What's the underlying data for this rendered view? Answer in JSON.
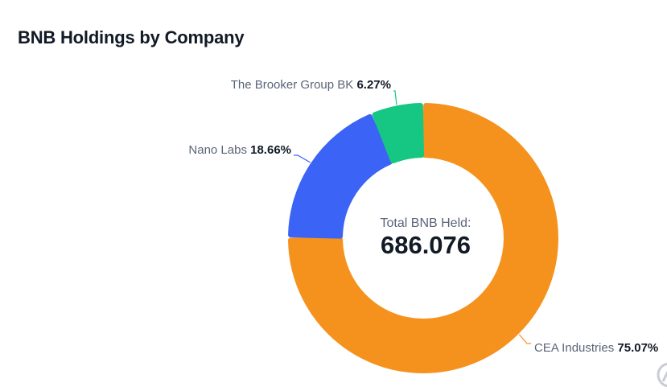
{
  "title": "BNB Holdings by Company",
  "chart_data": {
    "type": "pie",
    "variant": "donut",
    "title": "BNB Holdings by Company",
    "center_caption": "Total BNB Held:",
    "center_value": "686.076",
    "slices": [
      {
        "name": "CEA Industries",
        "percent_label": "75.07%",
        "value": 75.07,
        "color": "#F5921E"
      },
      {
        "name": "Nano Labs",
        "percent_label": "18.66%",
        "value": 18.66,
        "color": "#3B63F5"
      },
      {
        "name": "The Brooker Group BK",
        "percent_label": "6.27%",
        "value": 6.27,
        "color": "#16C784"
      }
    ],
    "legend": "none"
  },
  "colors": {
    "label_text": "#5a6478",
    "value_text": "#121a26",
    "watermark": "#c8ccd2"
  },
  "watermark_icon": "logo-mark-icon"
}
